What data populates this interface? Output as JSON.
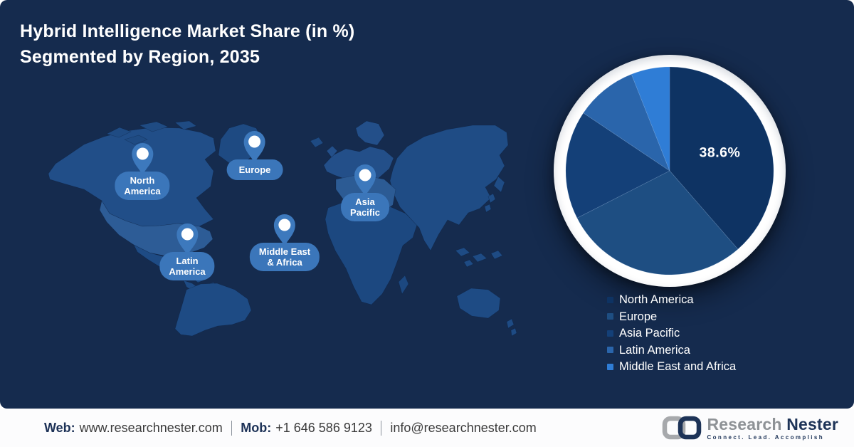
{
  "title": {
    "line1": "Hybrid Intelligence Market Share (in %)",
    "line2": "Segmented by Region, 2035"
  },
  "colors": {
    "panel_background": "#152b4e",
    "footer_background": "#fcfcfd",
    "pin_blue": "#3b76ba",
    "title_text": "#ffffff"
  },
  "chart_data": {
    "type": "pie",
    "title": "Hybrid Intelligence Market Share (in %) Segmented by Region, 2035",
    "start": "top",
    "direction": "clockwise",
    "legend_position": "bottom-right",
    "series": [
      {
        "name": "North America",
        "value": 38.6,
        "color": "#0e3363",
        "data_label": "38.6%"
      },
      {
        "name": "Europe",
        "value": 28.9,
        "color": "#1e4e82",
        "data_label": ""
      },
      {
        "name": "Asia Pacific",
        "value": 16.9,
        "color": "#144078",
        "data_label": ""
      },
      {
        "name": "Latin America",
        "value": 9.6,
        "color": "#2a65ab",
        "data_label": ""
      },
      {
        "name": "Middle East and Africa",
        "value": 6.0,
        "color": "#2f7dd6",
        "data_label": ""
      }
    ]
  },
  "map": {
    "pins": [
      {
        "region": "North America",
        "line1": "North",
        "line2": "America"
      },
      {
        "region": "Europe",
        "line1": "Europe",
        "line2": ""
      },
      {
        "region": "Asia Pacific",
        "line1": "Asia",
        "line2": "Pacific"
      },
      {
        "region": "Latin America",
        "line1": "Latin",
        "line2": "America"
      },
      {
        "region": "Middle East & Africa",
        "line1": "Middle East",
        "line2": "& Africa"
      }
    ]
  },
  "footer": {
    "web_label": "Web:",
    "web_value": "www.researchnester.com",
    "mob_label": "Mob:",
    "mob_value": "+1 646 586 9123",
    "email": "info@researchnester.com"
  },
  "logo": {
    "brand_part1": "Research",
    "brand_part2": "Nester",
    "tagline": "Connect. Lead. Accomplish"
  }
}
